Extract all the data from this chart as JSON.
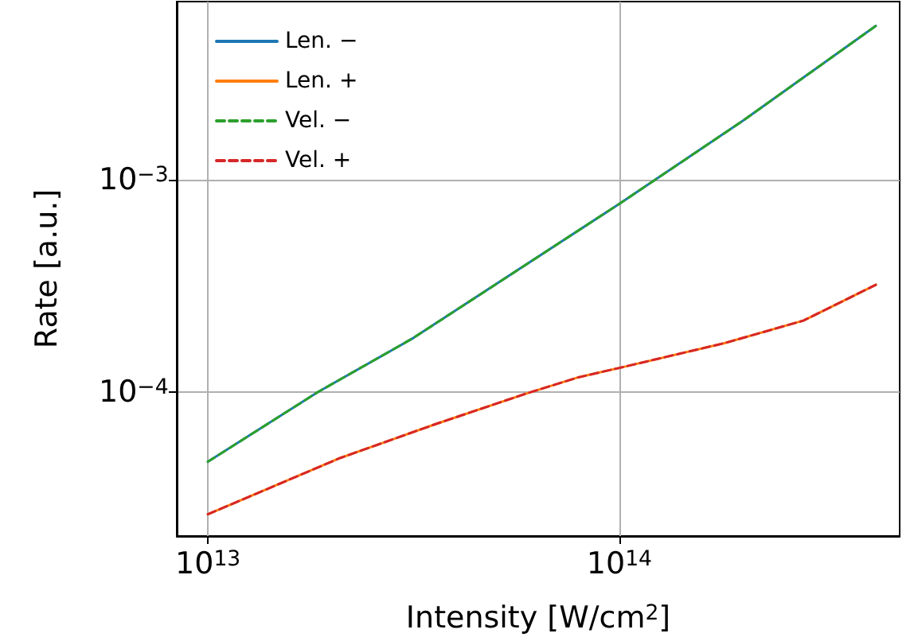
{
  "chart_data": {
    "type": "line",
    "xlabel": "Intensity [W/cm$^{2}$]",
    "ylabel": "Rate [a.u.]",
    "log": "xy",
    "grid": true,
    "legend": "top left",
    "marker": "none",
    "xlim": [
      8400000000000.0,
      480000000000000.0
    ],
    "ylim": [
      2.1e-05,
      0.0069
    ],
    "xticks": [
      {
        "value": 10000000000000.0,
        "label": "10$^{13}$"
      },
      {
        "value": 100000000000000.0,
        "label": "10$^{14}$"
      }
    ],
    "yticks": [
      {
        "value": 0.0001,
        "label": "10$^{−4}$"
      },
      {
        "value": 0.001,
        "label": "10$^{−3}$"
      }
    ],
    "series": [
      {
        "name": "Len. −",
        "color": "#1f77b4",
        "line_style": "solid",
        "x": [
          10000000000000.0,
          18500000000000.0,
          31600000000000.0,
          100000000000000.0,
          200000000000000.0,
          420000000000000.0
        ],
        "values": [
          4.7e-05,
          0.0001,
          0.00018,
          0.00077,
          0.0019,
          0.0053
        ]
      },
      {
        "name": "Len. +",
        "color": "#ff7f0e",
        "line_style": "solid",
        "x": [
          10000000000000.0,
          21000000000000.0,
          36000000000000.0,
          59000000000000.0,
          79000000000000.0,
          100000000000000.0,
          180000000000000.0,
          280000000000000.0,
          420000000000000.0
        ],
        "values": [
          2.66e-05,
          4.9e-05,
          7.1e-05,
          9.8e-05,
          0.000117,
          0.00013,
          0.00017,
          0.000217,
          0.00032
        ]
      },
      {
        "name": "Vel. −",
        "color": "#2ca02c",
        "line_style": "dashed",
        "x": [
          10000000000000.0,
          18500000000000.0,
          31600000000000.0,
          100000000000000.0,
          200000000000000.0,
          420000000000000.0
        ],
        "values": [
          4.7e-05,
          0.0001,
          0.00018,
          0.00077,
          0.0019,
          0.0053
        ]
      },
      {
        "name": "Vel. +",
        "color": "#d62728",
        "line_style": "dashed",
        "x": [
          10000000000000.0,
          21000000000000.0,
          36000000000000.0,
          59000000000000.0,
          79000000000000.0,
          100000000000000.0,
          180000000000000.0,
          280000000000000.0,
          420000000000000.0
        ],
        "values": [
          2.66e-05,
          4.9e-05,
          7.1e-05,
          9.8e-05,
          0.000117,
          0.00013,
          0.00017,
          0.000217,
          0.00032
        ]
      }
    ]
  }
}
